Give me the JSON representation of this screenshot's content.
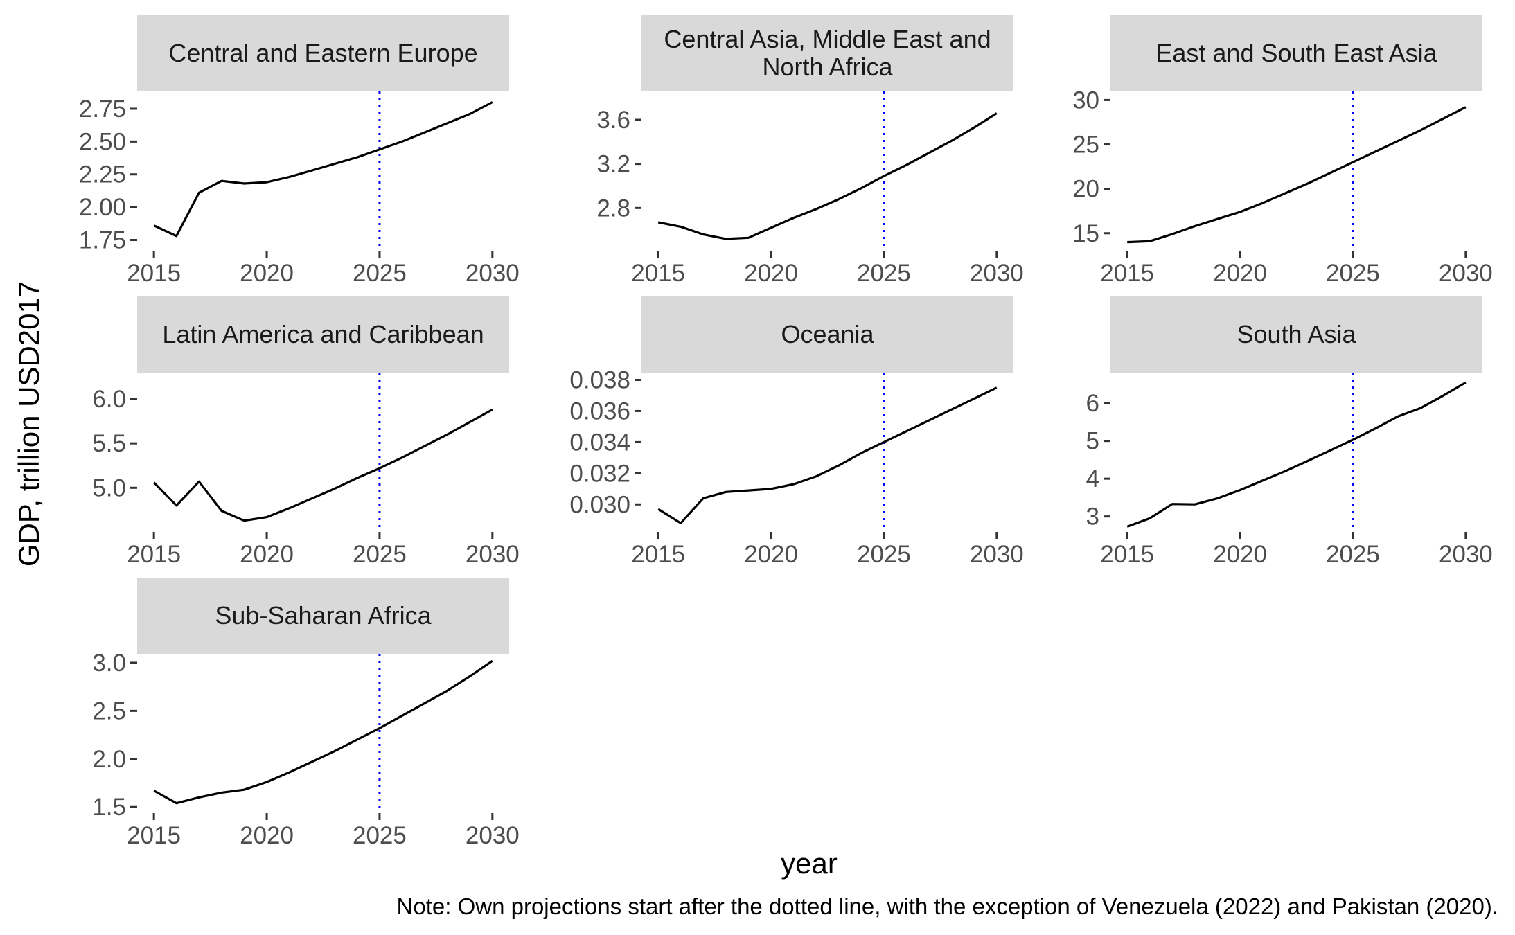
{
  "chart_data": {
    "type": "line",
    "x_label": "year",
    "y_label": "GDP, trillion USD2017",
    "caption": "Note: Own projections start after the dotted line, with the exception of Venezuela (2022) and Pakistan (2020).",
    "reference_line": {
      "x": 2025,
      "style": "dotted",
      "color": "#0000ff"
    },
    "line_color": "#000000",
    "xlim": [
      2015,
      2030
    ],
    "x_ticks": [
      2015,
      2020,
      2025,
      2030
    ],
    "panels": [
      {
        "title": "Central and Eastern Europe",
        "ylim": [
          1.7,
          2.85
        ],
        "y_ticks": [
          1.75,
          2.0,
          2.25,
          2.5,
          2.75
        ],
        "y_tick_labels": [
          "1.75",
          "2.00",
          "2.25",
          "2.50",
          "2.75"
        ],
        "x": [
          2015,
          2016,
          2017,
          2018,
          2019,
          2020,
          2021,
          2022,
          2023,
          2024,
          2025,
          2026,
          2027,
          2028,
          2029,
          2030
        ],
        "y": [
          1.86,
          1.78,
          2.11,
          2.2,
          2.18,
          2.19,
          2.23,
          2.28,
          2.33,
          2.38,
          2.44,
          2.5,
          2.57,
          2.64,
          2.71,
          2.8
        ]
      },
      {
        "title": "Central Asia, Middle East and North Africa",
        "ylim": [
          2.45,
          3.82
        ],
        "y_ticks": [
          2.8,
          3.2,
          3.6
        ],
        "y_tick_labels": [
          "2.8",
          "3.2",
          "3.6"
        ],
        "x": [
          2015,
          2016,
          2017,
          2018,
          2019,
          2020,
          2021,
          2022,
          2023,
          2024,
          2025,
          2026,
          2027,
          2028,
          2029,
          2030
        ],
        "y": [
          2.67,
          2.63,
          2.56,
          2.52,
          2.53,
          2.62,
          2.71,
          2.79,
          2.88,
          2.98,
          3.09,
          3.19,
          3.3,
          3.41,
          3.53,
          3.66
        ]
      },
      {
        "title": "East and South East Asia",
        "ylim": [
          13.5,
          30.5
        ],
        "y_ticks": [
          15,
          20,
          25,
          30
        ],
        "y_tick_labels": [
          "15",
          "20",
          "25",
          "30"
        ],
        "x": [
          2015,
          2016,
          2017,
          2018,
          2019,
          2020,
          2021,
          2022,
          2023,
          2024,
          2025,
          2026,
          2027,
          2028,
          2029,
          2030
        ],
        "y": [
          14.0,
          14.1,
          14.9,
          15.8,
          16.6,
          17.4,
          18.4,
          19.5,
          20.6,
          21.8,
          23.0,
          24.2,
          25.4,
          26.6,
          27.9,
          29.2
        ]
      },
      {
        "title": "Latin America and Caribbean",
        "ylim": [
          4.55,
          6.25
        ],
        "y_ticks": [
          5.0,
          5.5,
          6.0
        ],
        "y_tick_labels": [
          "5.0",
          "5.5",
          "6.0"
        ],
        "x": [
          2015,
          2016,
          2017,
          2018,
          2019,
          2020,
          2021,
          2022,
          2023,
          2024,
          2025,
          2026,
          2027,
          2028,
          2029,
          2030
        ],
        "y": [
          5.06,
          4.8,
          5.07,
          4.74,
          4.63,
          4.67,
          4.77,
          4.88,
          4.99,
          5.11,
          5.22,
          5.34,
          5.47,
          5.6,
          5.74,
          5.88
        ]
      },
      {
        "title": "Oceania",
        "ylim": [
          0.0285,
          0.0382
        ],
        "y_ticks": [
          0.03,
          0.032,
          0.034,
          0.036,
          0.038
        ],
        "y_tick_labels": [
          "0.030",
          "0.032",
          "0.034",
          "0.036",
          "0.038"
        ],
        "x": [
          2015,
          2016,
          2017,
          2018,
          2019,
          2020,
          2021,
          2022,
          2023,
          2024,
          2025,
          2026,
          2027,
          2028,
          2029,
          2030
        ],
        "y": [
          0.0297,
          0.0288,
          0.0304,
          0.0308,
          0.0309,
          0.031,
          0.0313,
          0.0318,
          0.0325,
          0.0333,
          0.034,
          0.0347,
          0.0354,
          0.0361,
          0.0368,
          0.0375
        ]
      },
      {
        "title": "South Asia",
        "ylim": [
          2.7,
          6.7
        ],
        "y_ticks": [
          3,
          4,
          5,
          6
        ],
        "y_tick_labels": [
          "3",
          "4",
          "5",
          "6"
        ],
        "x": [
          2015,
          2016,
          2017,
          2018,
          2019,
          2020,
          2021,
          2022,
          2023,
          2024,
          2025,
          2026,
          2027,
          2028,
          2029,
          2030
        ],
        "y": [
          2.73,
          2.95,
          3.33,
          3.32,
          3.48,
          3.7,
          3.95,
          4.2,
          4.47,
          4.75,
          5.03,
          5.33,
          5.65,
          5.87,
          6.2,
          6.55
        ]
      },
      {
        "title": "Sub-Saharan Africa",
        "ylim": [
          1.48,
          3.05
        ],
        "y_ticks": [
          1.5,
          2.0,
          2.5,
          3.0
        ],
        "y_tick_labels": [
          "1.5",
          "2.0",
          "2.5",
          "3.0"
        ],
        "x": [
          2015,
          2016,
          2017,
          2018,
          2019,
          2020,
          2021,
          2022,
          2023,
          2024,
          2025,
          2026,
          2027,
          2028,
          2029,
          2030
        ],
        "y": [
          1.67,
          1.54,
          1.6,
          1.65,
          1.68,
          1.76,
          1.86,
          1.97,
          2.08,
          2.2,
          2.32,
          2.45,
          2.58,
          2.71,
          2.86,
          3.02
        ]
      }
    ]
  }
}
